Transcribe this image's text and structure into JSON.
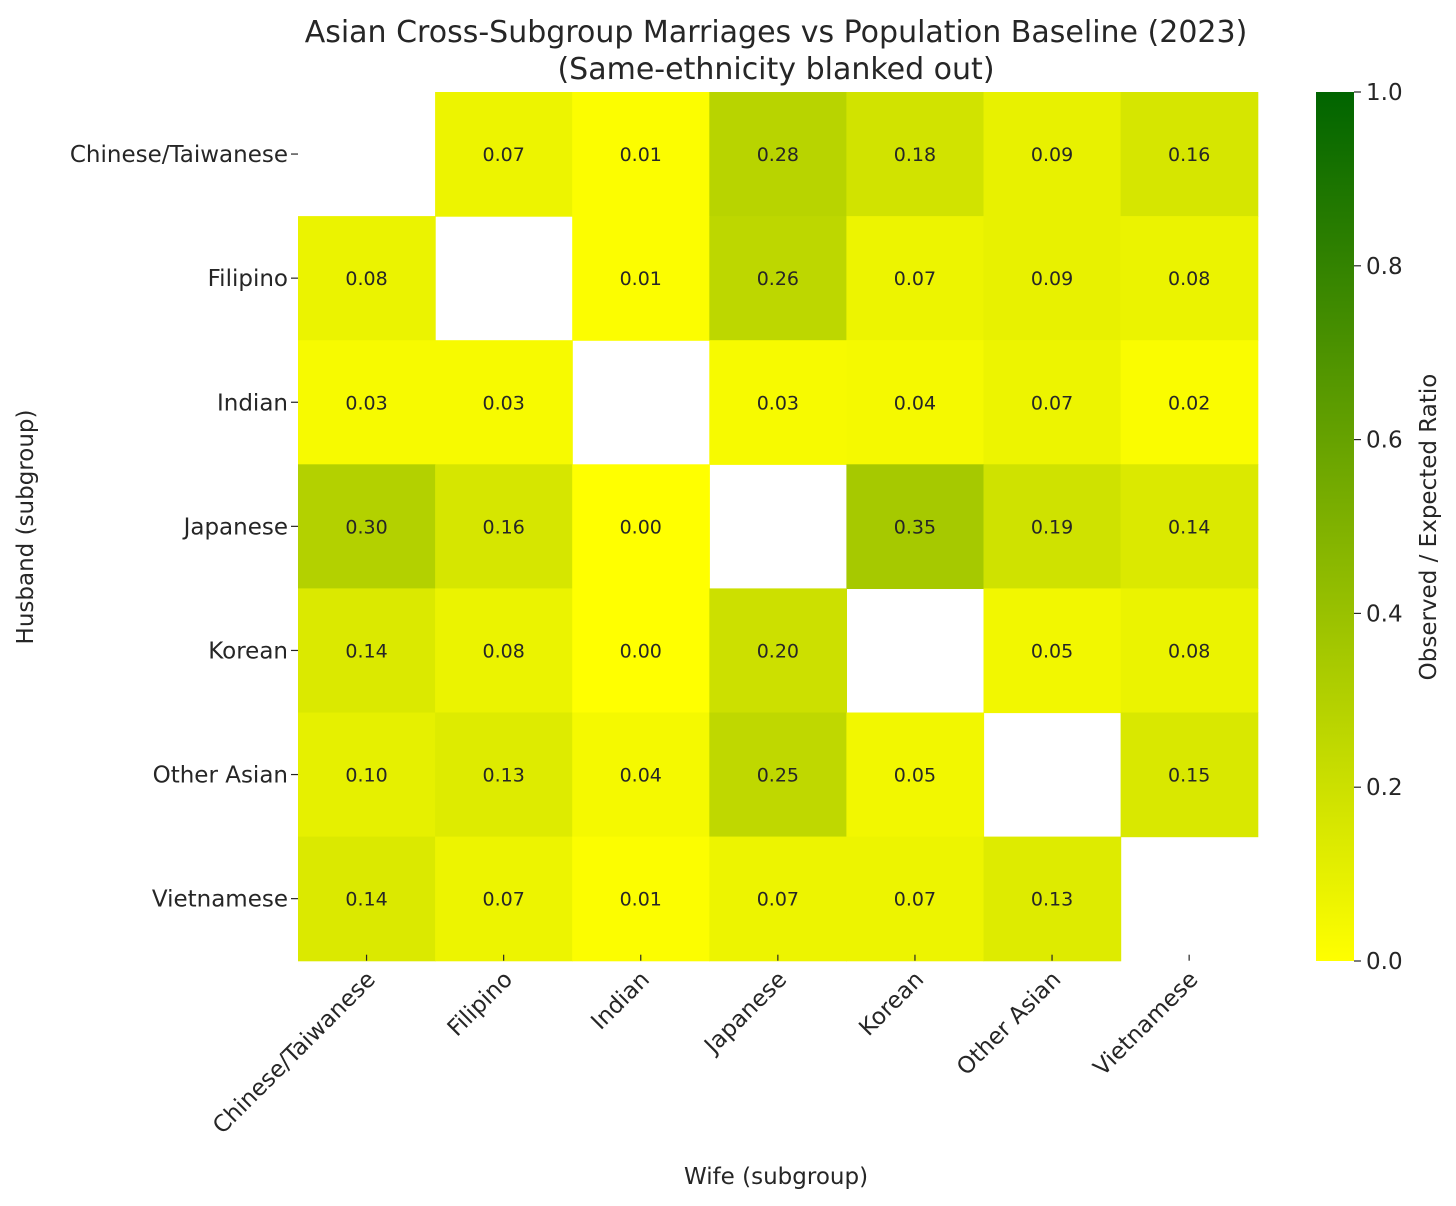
{
  "chart_data": {
    "type": "heatmap",
    "title": "Asian Cross-Subgroup Marriages vs Population Baseline (2023)",
    "subtitle": "(Same-ethnicity blanked out)",
    "xlabel": "Wife (subgroup)",
    "ylabel": "Husband (subgroup)",
    "x_categories": [
      "Chinese/Taiwanese",
      "Filipino",
      "Indian",
      "Japanese",
      "Korean",
      "Other Asian",
      "Vietnamese"
    ],
    "y_categories": [
      "Chinese/Taiwanese",
      "Filipino",
      "Indian",
      "Japanese",
      "Korean",
      "Other Asian",
      "Vietnamese"
    ],
    "values": [
      [
        null,
        0.07,
        0.01,
        0.28,
        0.18,
        0.09,
        0.16
      ],
      [
        0.08,
        null,
        0.01,
        0.26,
        0.07,
        0.09,
        0.08
      ],
      [
        0.03,
        0.03,
        null,
        0.03,
        0.04,
        0.07,
        0.02
      ],
      [
        0.3,
        0.16,
        0.0,
        null,
        0.35,
        0.19,
        0.14
      ],
      [
        0.14,
        0.08,
        0.0,
        0.2,
        null,
        0.05,
        0.08
      ],
      [
        0.1,
        0.13,
        0.04,
        0.25,
        0.05,
        null,
        0.15
      ],
      [
        0.14,
        0.07,
        0.01,
        0.07,
        0.07,
        0.13,
        null
      ]
    ],
    "blank_cells": "diagonal",
    "colorbar": {
      "label": "Observed / Expected Ratio",
      "range": [
        0.0,
        1.0
      ],
      "ticks": [
        "0.0",
        "0.2",
        "0.4",
        "0.6",
        "0.8",
        "1.0"
      ],
      "color_low": "#ffff00",
      "color_high": "#006400"
    },
    "value_format": "2 decimals",
    "grid": false
  }
}
